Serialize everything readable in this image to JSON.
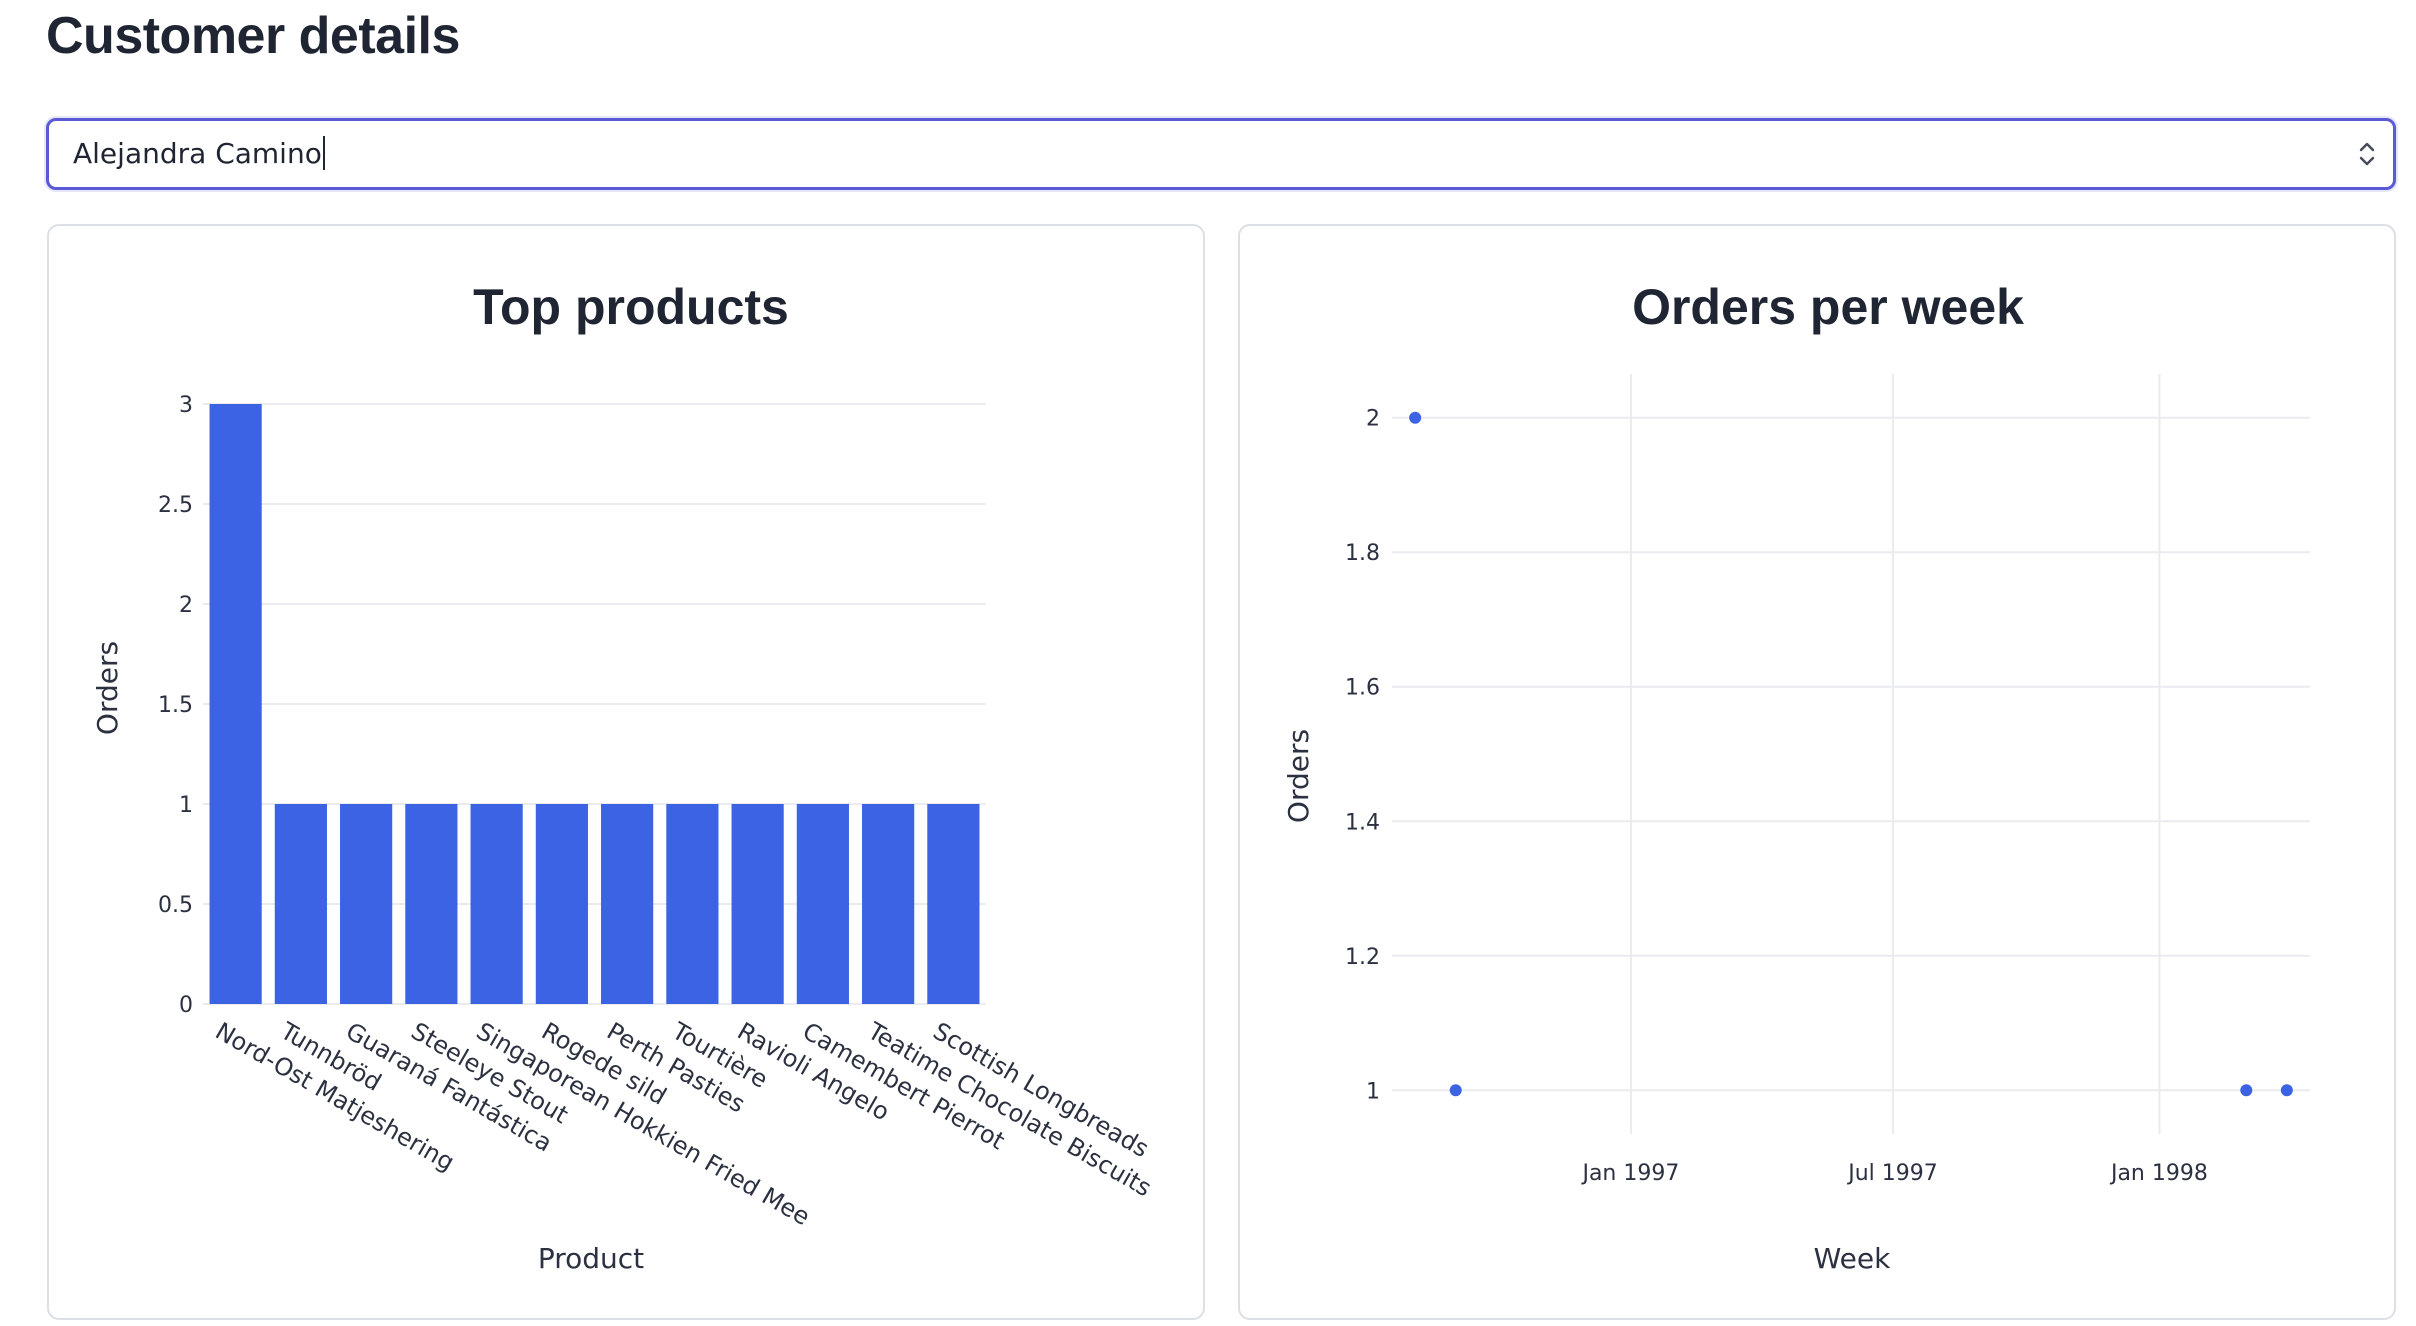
{
  "page": {
    "title": "Customer details"
  },
  "customer_select": {
    "value": "Alejandra Camino",
    "icon": "chevron-up-down-icon"
  },
  "colors": {
    "accent": "#3b63e4",
    "focus_border": "#5a59d6",
    "grid": "#e9ebef"
  },
  "chart_data": [
    {
      "type": "bar",
      "title": "Top products",
      "xlabel": "Product",
      "ylabel": "Orders",
      "categories": [
        "Nord-Ost Matjeshering",
        "Tunnbröd",
        "Guaraná Fantástica",
        "Steeleye Stout",
        "Singaporean Hokkien Fried Mee",
        "Rogede sild",
        "Perth Pasties",
        "Tourtière",
        "Ravioli Angelo",
        "Camembert Pierrot",
        "Teatime Chocolate Biscuits",
        "Scottish Longbreads"
      ],
      "values": [
        3,
        1,
        1,
        1,
        1,
        1,
        1,
        1,
        1,
        1,
        1,
        1
      ],
      "yticks": [
        "0",
        "0.5",
        "1",
        "1.5",
        "2",
        "2.5",
        "3"
      ],
      "ylim": [
        0,
        3
      ],
      "grid": true,
      "color": "#3b63e4"
    },
    {
      "type": "scatter",
      "title": "Orders per week",
      "xlabel": "Week",
      "ylabel": "Orders",
      "points": [
        {
          "x": "1996-08-05",
          "y": 2
        },
        {
          "x": "1996-09-02",
          "y": 1
        },
        {
          "x": "1998-03-02",
          "y": 1
        },
        {
          "x": "1998-03-30",
          "y": 1
        }
      ],
      "xticks": [
        {
          "date": "1997-01-01",
          "label": "Jan 1997"
        },
        {
          "date": "1997-07-01",
          "label": "Jul 1997"
        },
        {
          "date": "1998-01-01",
          "label": "Jan 1998"
        }
      ],
      "yticks": [
        "1",
        "1.2",
        "1.4",
        "1.6",
        "1.8",
        "2"
      ],
      "xlim": [
        "1996-07-20",
        "1998-04-15"
      ],
      "ylim": [
        0.935,
        2.065
      ],
      "grid": true,
      "color": "#3b63e4"
    }
  ]
}
